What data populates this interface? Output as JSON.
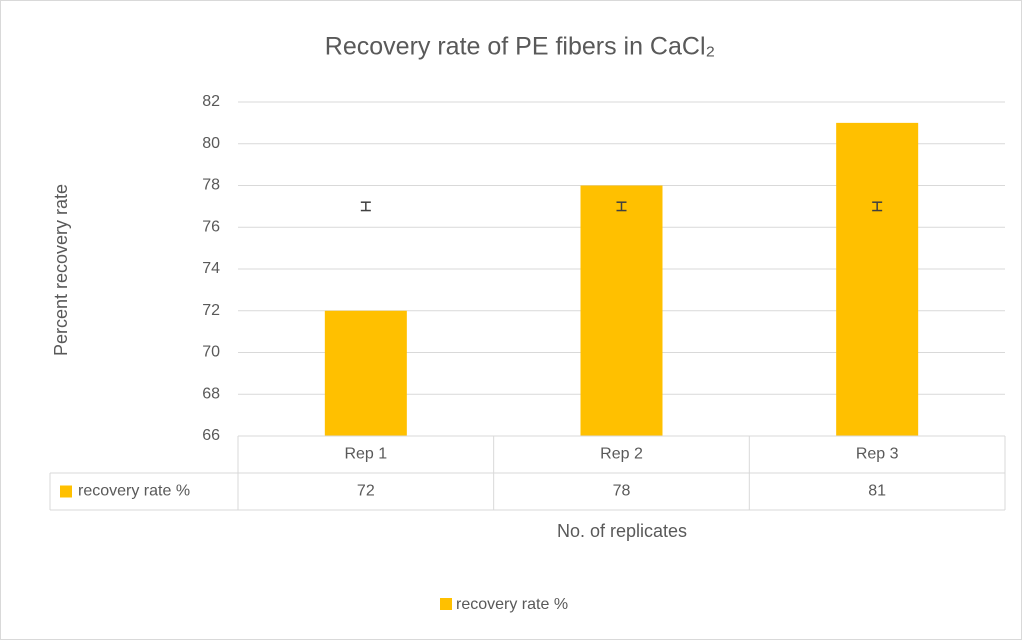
{
  "chart_data": {
    "type": "bar",
    "title": "Recovery rate of PE fibers in CaCl₂",
    "x_label": "No. of replicates",
    "y_label": "Percent recovery rate",
    "categories": [
      "Rep 1",
      "Rep 2",
      "Rep 3"
    ],
    "series": [
      {
        "name": "recovery rate %",
        "color": "#ffc000",
        "values": [
          72,
          78,
          81
        ]
      }
    ],
    "error_bars": {
      "values": [
        77,
        77,
        77
      ],
      "errors": [
        0.2,
        0.2,
        0.2
      ],
      "color": "#404040"
    },
    "ylim": [
      66,
      82
    ],
    "yticks": [
      66,
      68,
      70,
      72,
      74,
      76,
      78,
      80,
      82
    ],
    "grid": true,
    "data_table": true,
    "legend": "bottom"
  }
}
